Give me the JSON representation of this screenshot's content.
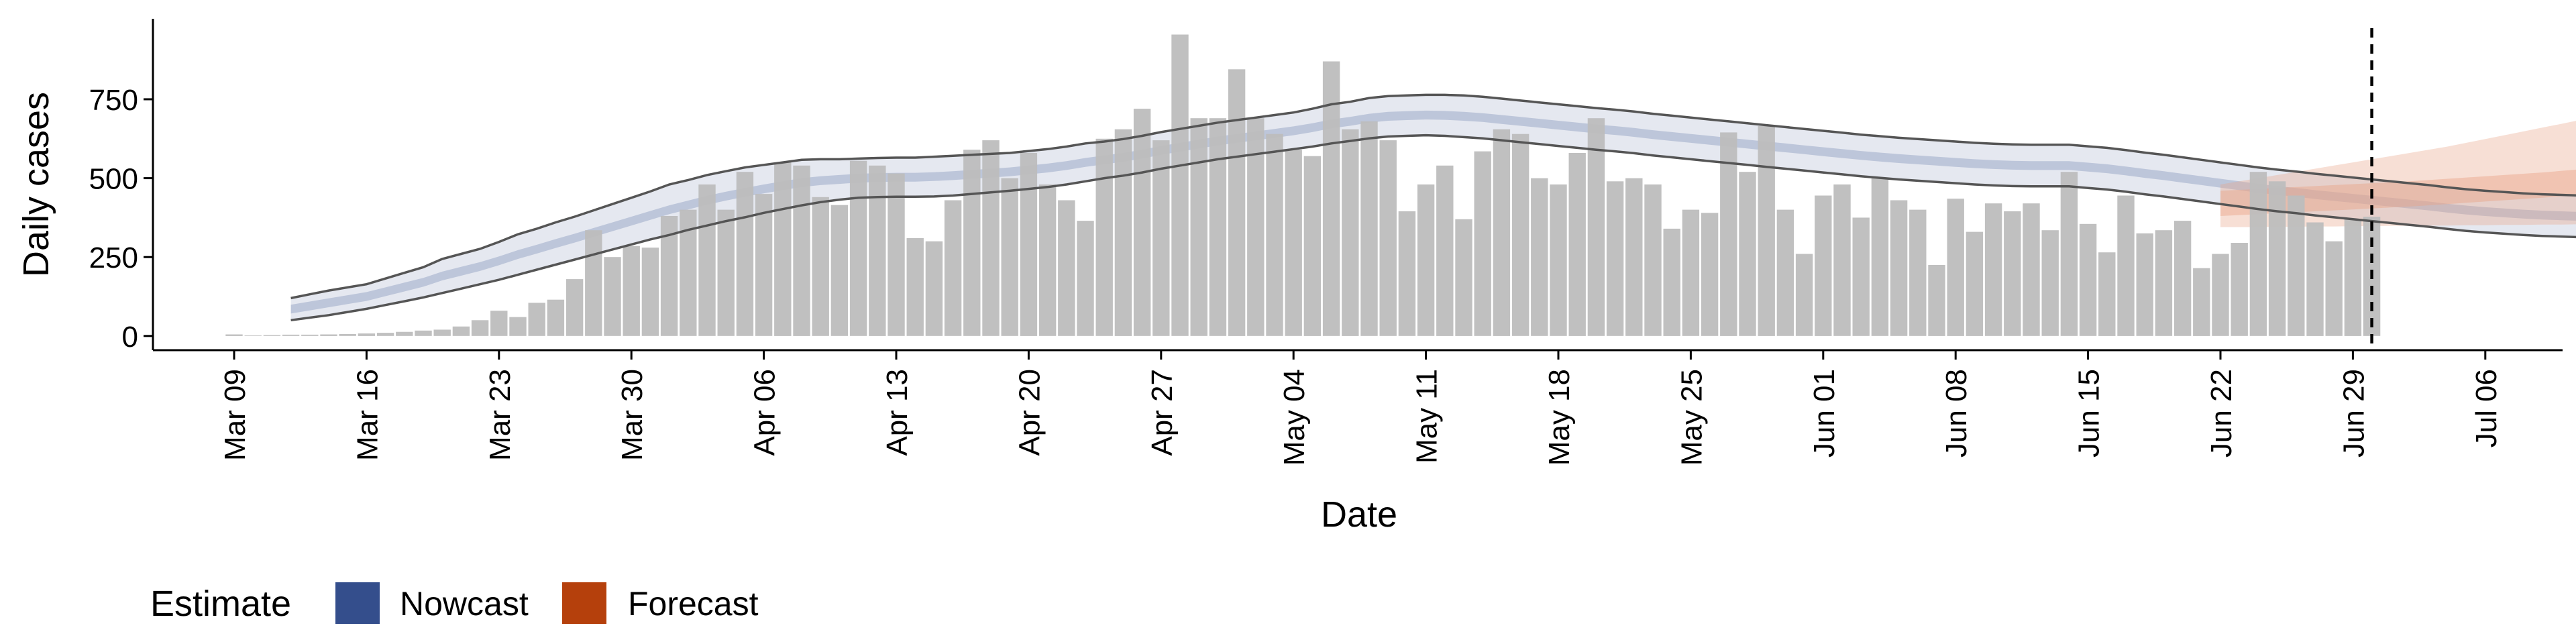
{
  "chart_data": {
    "type": "bar",
    "xlabel": "Date",
    "ylabel": "Daily cases",
    "x_start": "2020-03-08",
    "y_ticks": [
      "0",
      "250",
      "500",
      "750"
    ],
    "y_tick_values": [
      0,
      250,
      500,
      750
    ],
    "ylim": [
      -45,
      1005
    ],
    "x_ticks": [
      "Mar 09",
      "Mar 16",
      "Mar 23",
      "Mar 30",
      "Apr 06",
      "Apr 13",
      "Apr 20",
      "Apr 27",
      "May 04",
      "May 11",
      "May 18",
      "May 25",
      "Jun 01",
      "Jun 08",
      "Jun 15",
      "Jun 22",
      "Jun 29",
      "Jul 06"
    ],
    "cases": [
      0,
      5,
      2,
      3,
      4,
      4,
      5,
      6,
      8,
      10,
      13,
      17,
      20,
      30,
      50,
      80,
      60,
      105,
      115,
      180,
      335,
      250,
      285,
      280,
      380,
      400,
      480,
      400,
      520,
      450,
      550,
      540,
      440,
      415,
      555,
      540,
      515,
      310,
      300,
      430,
      590,
      620,
      500,
      580,
      480,
      430,
      365,
      625,
      655,
      720,
      620,
      955,
      690,
      690,
      845,
      690,
      640,
      590,
      570,
      870,
      655,
      680,
      620,
      395,
      480,
      540,
      370,
      585,
      655,
      640,
      500,
      480,
      580,
      690,
      490,
      500,
      480,
      340,
      400,
      390,
      645,
      520,
      665,
      400,
      260,
      445,
      480,
      375,
      500,
      430,
      400,
      225,
      435,
      330,
      420,
      395,
      420,
      335,
      520,
      355,
      265,
      445,
      325,
      335,
      365,
      215,
      260,
      295,
      520,
      490,
      445,
      360,
      300,
      370,
      378
    ],
    "nowcast": [
      85,
      95,
      105,
      115,
      125,
      140,
      155,
      170,
      190,
      205,
      220,
      238,
      258,
      275,
      293,
      310,
      328,
      346,
      364,
      382,
      400,
      415,
      430,
      443,
      455,
      466,
      476,
      486,
      492,
      496,
      500,
      502,
      503,
      503,
      505,
      508,
      512,
      516,
      520,
      526,
      532,
      540,
      550,
      558,
      566,
      576,
      588,
      598,
      608,
      618,
      626,
      634,
      642,
      650,
      660,
      672,
      680,
      690,
      696,
      698,
      700,
      699,
      696,
      692,
      686,
      680,
      674,
      668,
      662,
      656,
      651,
      645,
      638,
      632,
      626,
      620,
      614,
      608,
      602,
      596,
      590,
      584,
      578,
      572,
      567,
      562,
      558,
      554,
      550,
      546,
      543,
      541,
      540,
      540,
      540,
      535,
      530,
      523,
      515,
      508,
      500,
      492,
      484,
      476,
      468,
      461,
      455,
      448,
      442,
      436,
      430,
      424,
      418,
      412,
      405,
      399,
      394,
      390,
      386,
      383,
      381,
      379,
      377,
      375,
      373,
      372,
      371,
      371,
      370,
      368,
      366,
      365,
      364,
      364,
      363,
      362,
      362,
      363,
      364,
      366,
      369,
      374,
      380,
      388,
      396
    ],
    "nowcast_lower": [
      50,
      58,
      66,
      76,
      86,
      98,
      110,
      122,
      136,
      150,
      164,
      178,
      194,
      210,
      226,
      242,
      258,
      274,
      290,
      306,
      320,
      336,
      350,
      364,
      376,
      390,
      402,
      414,
      424,
      432,
      438,
      440,
      441,
      441,
      442,
      445,
      450,
      455,
      460,
      466,
      472,
      480,
      490,
      500,
      508,
      518,
      530,
      540,
      550,
      560,
      568,
      576,
      584,
      592,
      600,
      610,
      618,
      626,
      632,
      634,
      636,
      634,
      630,
      626,
      620,
      614,
      608,
      602,
      596,
      590,
      585,
      579,
      572,
      566,
      560,
      554,
      548,
      542,
      536,
      530,
      524,
      518,
      512,
      506,
      501,
      496,
      492,
      488,
      484,
      480,
      477,
      475,
      474,
      474,
      474,
      469,
      464,
      457,
      449,
      442,
      434,
      426,
      418,
      410,
      402,
      395,
      389,
      382,
      376,
      370,
      364,
      358,
      352,
      346,
      339,
      333,
      328,
      324,
      320,
      317,
      315,
      313,
      311,
      309,
      307,
      306,
      305,
      305,
      304,
      302,
      300,
      299,
      298,
      298,
      297,
      296,
      296,
      297,
      298,
      300,
      303,
      308,
      314,
      322,
      330
    ],
    "nowcast_upper": [
      120,
      132,
      144,
      154,
      164,
      182,
      200,
      218,
      244,
      260,
      276,
      298,
      322,
      340,
      360,
      378,
      398,
      418,
      438,
      458,
      480,
      494,
      510,
      522,
      534,
      542,
      550,
      558,
      560,
      560,
      562,
      564,
      565,
      565,
      568,
      571,
      574,
      577,
      580,
      586,
      592,
      600,
      610,
      616,
      624,
      634,
      646,
      656,
      666,
      676,
      684,
      692,
      700,
      708,
      720,
      734,
      742,
      754,
      760,
      762,
      764,
      764,
      762,
      758,
      752,
      746,
      740,
      734,
      728,
      722,
      717,
      711,
      704,
      698,
      692,
      686,
      680,
      674,
      668,
      662,
      656,
      650,
      644,
      638,
      633,
      628,
      624,
      620,
      616,
      612,
      609,
      607,
      606,
      606,
      606,
      601,
      596,
      589,
      581,
      574,
      566,
      558,
      550,
      542,
      534,
      527,
      521,
      514,
      508,
      502,
      496,
      490,
      484,
      478,
      471,
      465,
      460,
      456,
      452,
      449,
      447,
      445,
      443,
      441,
      439,
      438,
      437,
      437,
      436,
      434,
      432,
      431,
      430,
      430,
      429,
      428,
      428,
      429,
      430,
      432,
      435,
      440,
      446,
      454,
      462
    ],
    "forecast_start_index": 106,
    "forecast_median": [
      420,
      423,
      426,
      429,
      432,
      435,
      438,
      441,
      444,
      447,
      450,
      454,
      458,
      462,
      466,
      470,
      474,
      478,
      483,
      488,
      493,
      498,
      503,
      508,
      514,
      520
    ],
    "forecast_lower": [
      345,
      345,
      345,
      346,
      346,
      347,
      347,
      348,
      348,
      349,
      349,
      350,
      350,
      351,
      351,
      352,
      352,
      353,
      353,
      354,
      354,
      355,
      355,
      355,
      356,
      356
    ],
    "forecast_upper": [
      480,
      490,
      500,
      510,
      520,
      530,
      540,
      550,
      560,
      570,
      580,
      590,
      600,
      612,
      624,
      636,
      648,
      660,
      672,
      684,
      696,
      710,
      724,
      738,
      752,
      780
    ],
    "report_date_index": 114,
    "legend": {
      "title": "Estimate",
      "entries": [
        {
          "label": "Nowcast",
          "color": "#344e8c"
        },
        {
          "label": "Forecast",
          "color": "#b5400c"
        }
      ],
      "position": "bottom-left"
    },
    "colors": {
      "bars": "#bdbdbd",
      "nowcast_band": "#344e8c",
      "forecast_band": "#e8a488",
      "ci_lines": "#555555",
      "report_line": "#000000"
    }
  }
}
